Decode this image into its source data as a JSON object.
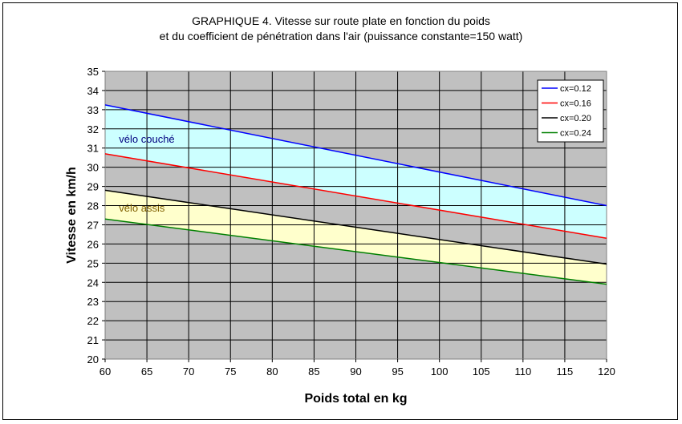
{
  "chart_data": {
    "type": "line",
    "title_lines": [
      "GRAPHIQUE 4. Vitesse sur route plate en fonction du poids",
      "et du coefficient de pénétration dans l'air (puissance constante=150 watt)"
    ],
    "xlabel": "Poids total en kg",
    "ylabel": "Vitesse en km/h",
    "xlim": [
      60,
      120
    ],
    "ylim": [
      20,
      35
    ],
    "xticks": [
      60,
      65,
      70,
      75,
      80,
      85,
      90,
      95,
      100,
      105,
      110,
      115,
      120
    ],
    "yticks": [
      20,
      21,
      22,
      23,
      24,
      25,
      26,
      27,
      28,
      29,
      30,
      31,
      32,
      33,
      34,
      35
    ],
    "grid": true,
    "plot_background": "#c0c0c0",
    "legend_position": "top-right",
    "series": [
      {
        "name": "cx=0.12",
        "color": "#0000ff",
        "x": [
          60,
          120
        ],
        "y": [
          33.25,
          28.0
        ]
      },
      {
        "name": "cx=0.16",
        "color": "#ff0000",
        "x": [
          60,
          120
        ],
        "y": [
          30.7,
          26.3
        ]
      },
      {
        "name": "cx=0.20",
        "color": "#000000",
        "x": [
          60,
          120
        ],
        "y": [
          28.8,
          24.95
        ]
      },
      {
        "name": "cx=0.24",
        "color": "#008000",
        "x": [
          60,
          120
        ],
        "y": [
          27.3,
          23.9
        ]
      }
    ],
    "bands": [
      {
        "label": "vélo couché",
        "upper_series": 0,
        "lower_series": 1,
        "color": "#ccffff",
        "label_at": [
          60.7,
          31.5
        ],
        "label_color": "#000080"
      },
      {
        "label": "vélo assis",
        "upper_series": 2,
        "lower_series": 3,
        "color": "#ffffcc",
        "label_at": [
          60.7,
          27.9
        ],
        "label_color": "#806000"
      }
    ]
  }
}
